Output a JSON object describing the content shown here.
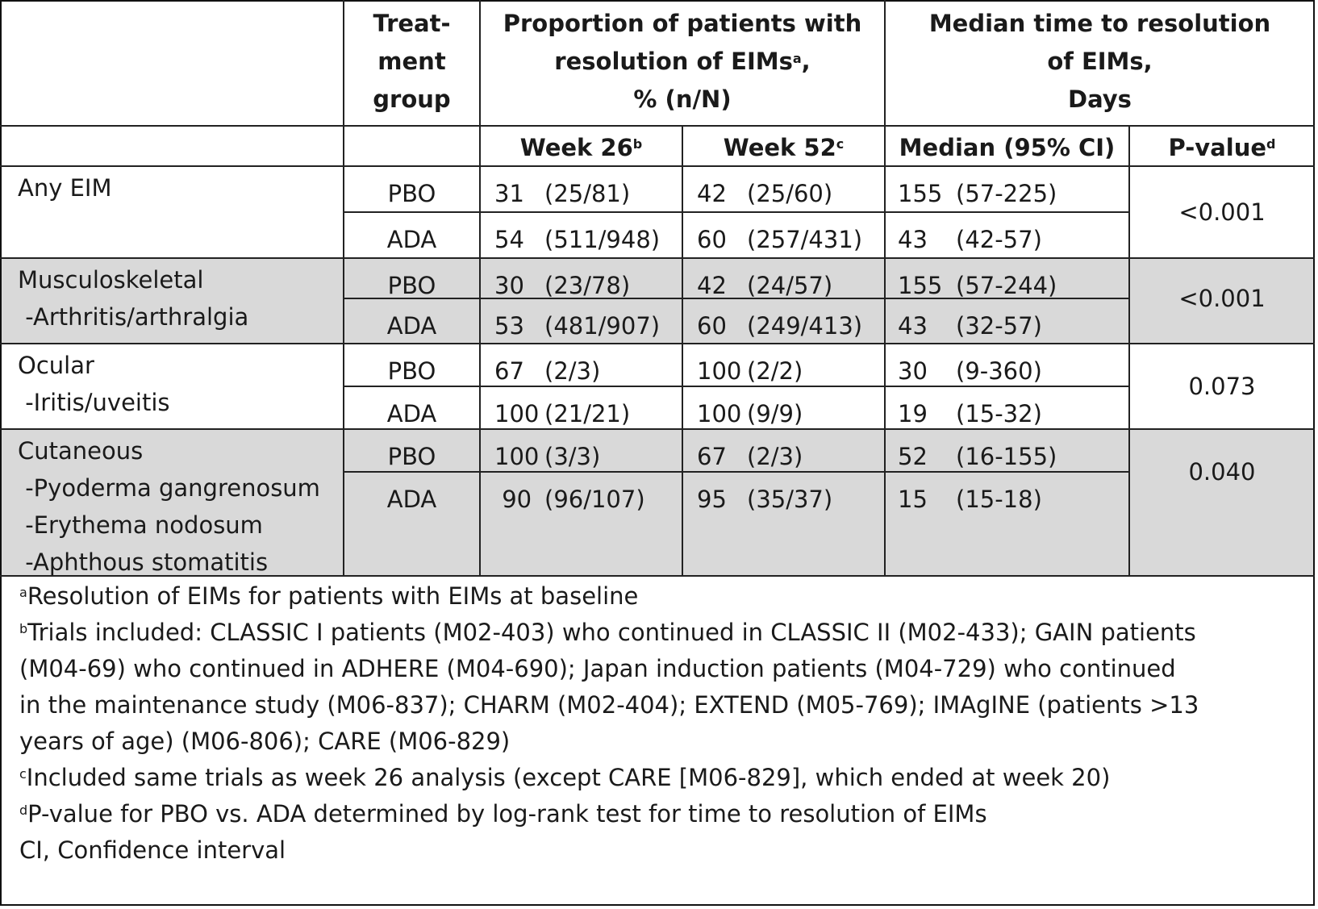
{
  "header": {
    "treatment_group": [
      "Treat-",
      "ment",
      "group"
    ],
    "proportion": {
      "line1": "Proportion of patients with",
      "line2": "resolution of EIMs",
      "line2_sup": "a",
      "line2_tail": ",",
      "line3": "% (n/N)"
    },
    "median_time": [
      "Median time to resolution",
      "of EIMs,",
      "Days"
    ],
    "week26": "Week 26",
    "week26_sup": "b",
    "week52": "Week 52",
    "week52_sup": "c",
    "median_ci": "Median (95% CI)",
    "pvalue": "P-value",
    "pvalue_sup": "d"
  },
  "groups": [
    {
      "labels": [
        "Any EIM"
      ],
      "pvalue": "<0.001",
      "rows": [
        {
          "treatment": "PBO",
          "w26_pct": "31",
          "w26_n": "(25/81)",
          "w52_pct": "42",
          "w52_n": "(25/60)",
          "median": "155",
          "ci": "(57-225)"
        },
        {
          "treatment": "ADA",
          "w26_pct": "54",
          "w26_n": "(511/948)",
          "w52_pct": "60",
          "w52_n": "(257/431)",
          "median": "43",
          "ci": "(42-57)"
        }
      ]
    },
    {
      "labels": [
        "Musculoskeletal",
        " -Arthritis/arthralgia"
      ],
      "pvalue": "<0.001",
      "rows": [
        {
          "treatment": "PBO",
          "w26_pct": "30",
          "w26_n": "(23/78)",
          "w52_pct": "42",
          "w52_n": "(24/57)",
          "median": "155",
          "ci": "(57-244)"
        },
        {
          "treatment": "ADA",
          "w26_pct": "53",
          "w26_n": "(481/907)",
          "w52_pct": "60",
          "w52_n": "(249/413)",
          "median": "43",
          "ci": "(32-57)"
        }
      ]
    },
    {
      "labels": [
        "Ocular",
        " -Iritis/uveitis"
      ],
      "pvalue": "0.073",
      "rows": [
        {
          "treatment": "PBO",
          "w26_pct": "67",
          "w26_n": "(2/3)",
          "w52_pct": "100",
          "w52_n": "(2/2)",
          "median": "30",
          "ci": "(9-360)"
        },
        {
          "treatment": "ADA",
          "w26_pct": "100",
          "w26_n": "(21/21)",
          "w52_pct": "100",
          "w52_n": "(9/9)",
          "median": "19",
          "ci": "(15-32)"
        }
      ]
    },
    {
      "labels": [
        "Cutaneous",
        " -Pyoderma gangrenosum",
        " -Erythema nodosum",
        " -Aphthous stomatitis"
      ],
      "pvalue": "0.040",
      "rows": [
        {
          "treatment": "PBO",
          "w26_pct": "100",
          "w26_n": "(3/3)",
          "w52_pct": "67",
          "w52_n": "(2/3)",
          "median": "52",
          "ci": "(16-155)"
        },
        {
          "treatment": "ADA",
          "w26_pct": " 90",
          "w26_n": "(96/107)",
          "w52_pct": "95",
          "w52_n": "(35/37)",
          "median": "15",
          "ci": "(15-18)"
        }
      ]
    }
  ],
  "footnotes": [
    {
      "sup": "a",
      "lines": [
        "Resolution of EIMs for patients with EIMs at baseline"
      ]
    },
    {
      "sup": "b",
      "lines": [
        "Trials included: CLASSIC I patients (M02-403) who continued in CLASSIC II (M02-433); GAIN patients",
        "(M04-69) who continued in ADHERE (M04-690); Japan induction patients (M04-729) who continued",
        "in the maintenance study (M06-837); CHARM (M02-404); EXTEND (M05-769); IMAgINE (patients >13",
        "years of age) (M06-806); CARE (M06-829)"
      ]
    },
    {
      "sup": "c",
      "lines": [
        "Included same trials as week 26 analysis (except CARE [M06-829], which ended at week 20)"
      ]
    },
    {
      "sup": "d",
      "lines": [
        "P-value for PBO vs. ADA determined by log-rank test for time to resolution of EIMs"
      ]
    },
    {
      "sup": "",
      "lines": [
        "CI, Confidence interval"
      ]
    }
  ]
}
